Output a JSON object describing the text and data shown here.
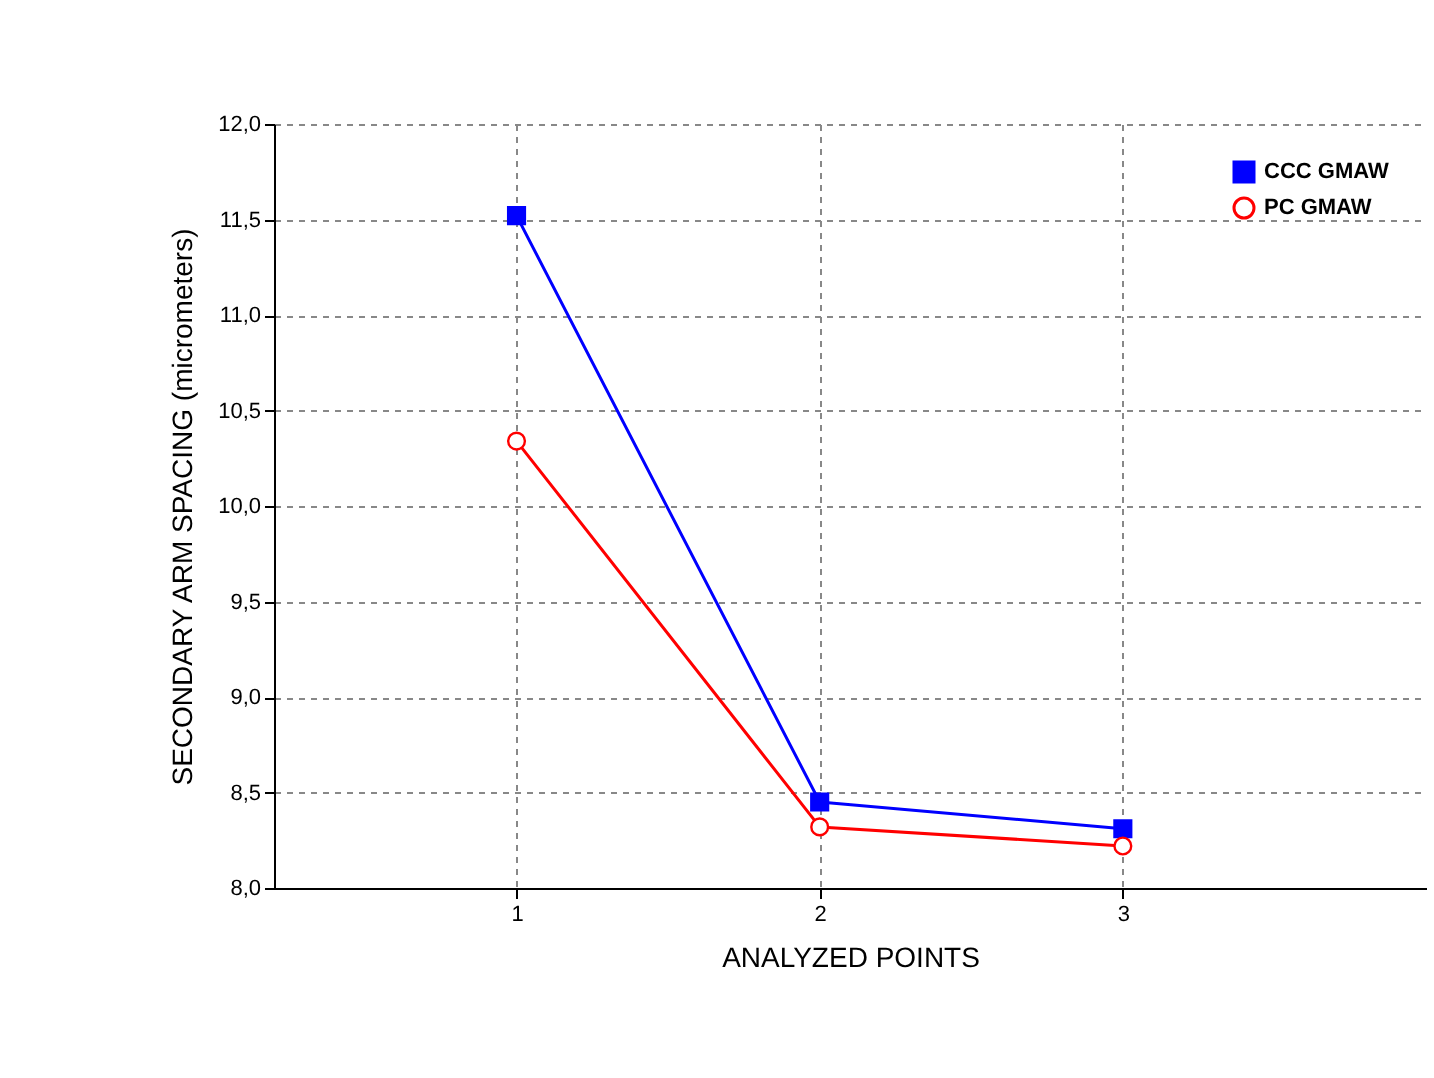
{
  "chart_data": {
    "type": "line",
    "xlabel": "ANALYZED POINTS",
    "ylabel": "SECONDARY ARM SPACING (micrometers)",
    "x": [
      1,
      2,
      3
    ],
    "series": [
      {
        "name": "CCC GMAW",
        "color": "#0000ff",
        "values": [
          11.52,
          8.45,
          8.31
        ],
        "marker": "square"
      },
      {
        "name": "PC GMAW",
        "color": "#ff0000",
        "values": [
          10.34,
          8.32,
          8.22
        ],
        "marker": "circle"
      }
    ],
    "xlim": [
      0.2,
      4.0
    ],
    "xticks": [
      1,
      2,
      3
    ],
    "ylim": [
      8.0,
      12.0
    ],
    "yticks": [
      {
        "value": 8.0,
        "label": "8,0"
      },
      {
        "value": 8.5,
        "label": "8,5"
      },
      {
        "value": 9.0,
        "label": "9,0"
      },
      {
        "value": 9.5,
        "label": "9,5"
      },
      {
        "value": 10.0,
        "label": "10,0"
      },
      {
        "value": 10.5,
        "label": "10,5"
      },
      {
        "value": 11.0,
        "label": "11,0"
      },
      {
        "value": 11.5,
        "label": "11,5"
      },
      {
        "value": 12.0,
        "label": "12,0"
      }
    ],
    "grid": true,
    "legend": "top right",
    "line_style": "solid"
  }
}
